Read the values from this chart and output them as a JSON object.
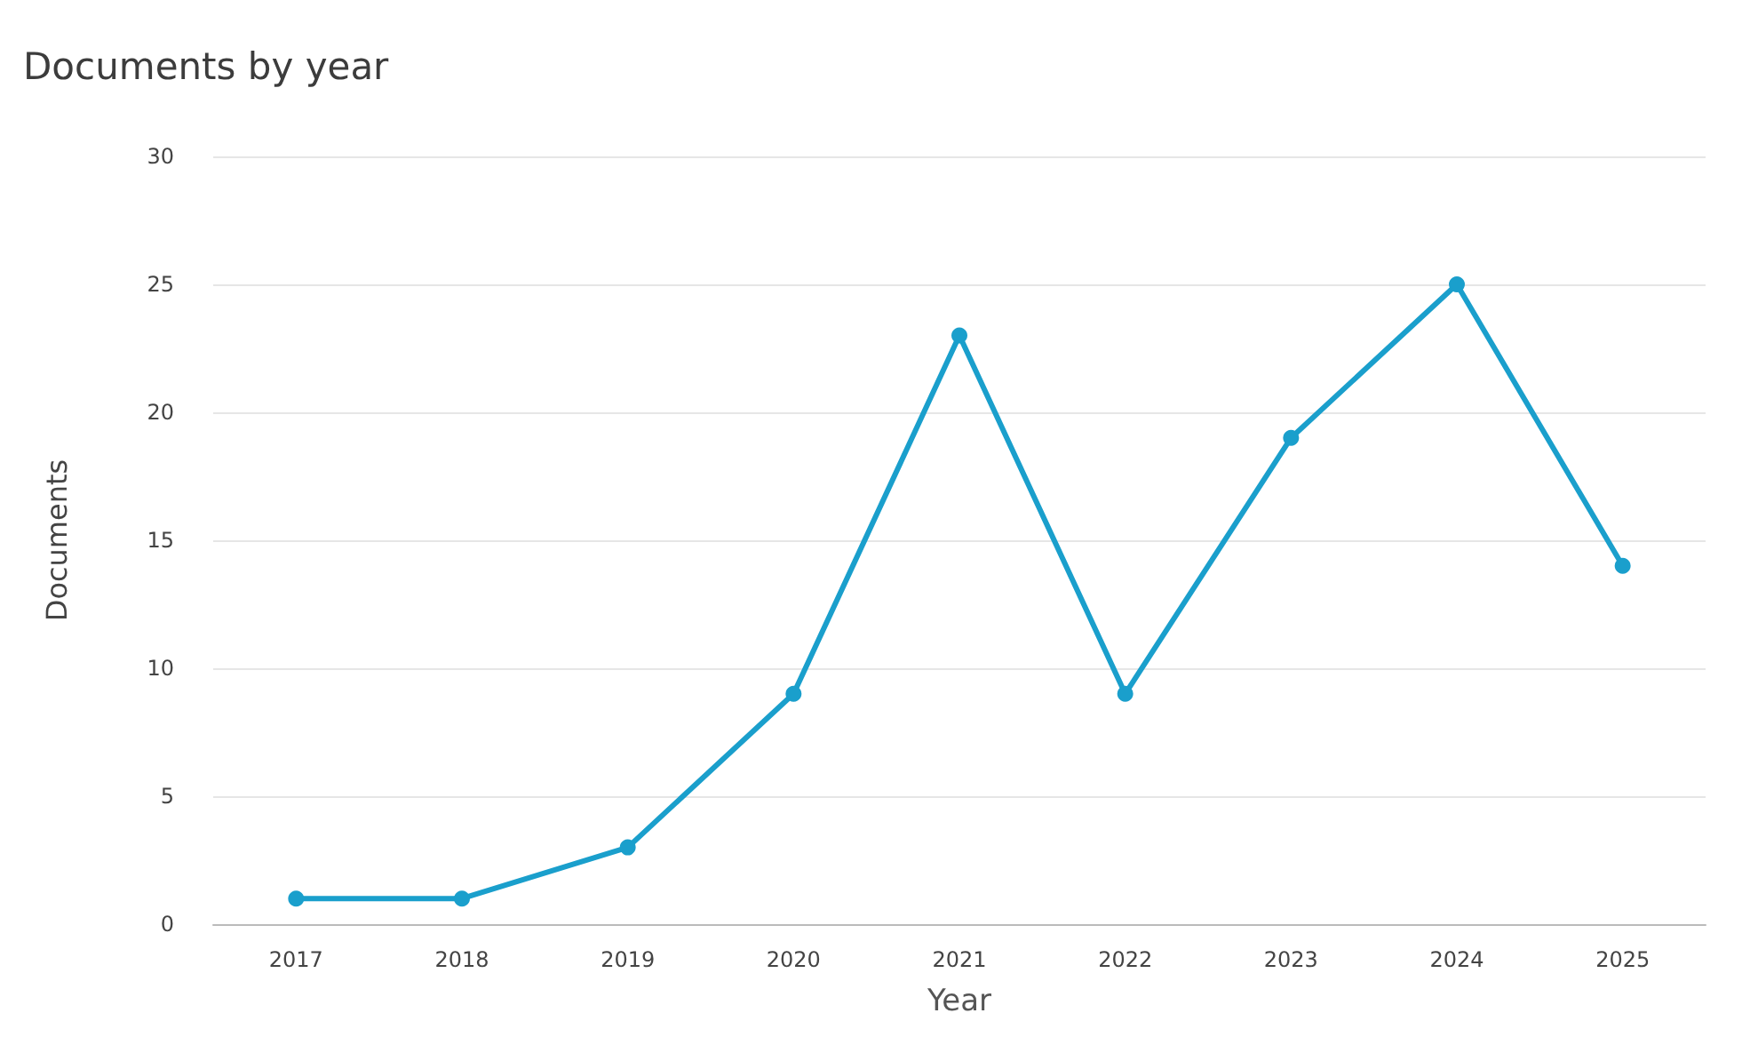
{
  "chart_data": {
    "type": "line",
    "title": "Documents by year",
    "xlabel": "Year",
    "ylabel": "Documents",
    "categories": [
      "2017",
      "2018",
      "2019",
      "2020",
      "2021",
      "2022",
      "2023",
      "2024",
      "2025"
    ],
    "series": [
      {
        "color": "#1a9fcc",
        "values": [
          1,
          1,
          3,
          9,
          23,
          9,
          19,
          25,
          14
        ]
      }
    ],
    "ylim": [
      0,
      30
    ],
    "yticks": [
      0,
      5,
      10,
      15,
      20,
      25,
      30
    ],
    "grid": "y",
    "marker": "circle",
    "line_style": "solid"
  }
}
